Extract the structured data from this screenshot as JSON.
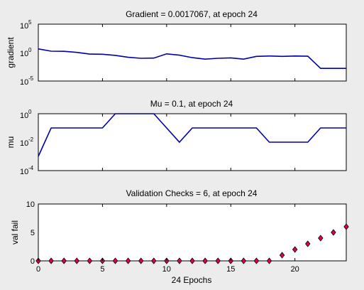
{
  "figure_background": "#ececec",
  "chart_data": [
    {
      "type": "line",
      "title": "Gradient = 0.0017067, at epoch 24",
      "xlabel": "",
      "ylabel": "gradient",
      "yscale": "log",
      "xlim": [
        0,
        24
      ],
      "ylim": [
        1e-05,
        100000
      ],
      "y_ticks": [
        {
          "base": "10",
          "exp": "5"
        },
        {
          "base": "10",
          "exp": "0"
        },
        {
          "base": "10",
          "exp": "-5"
        }
      ],
      "line_color": "#0000a8",
      "x": [
        0,
        1,
        2,
        3,
        4,
        5,
        6,
        7,
        8,
        9,
        10,
        11,
        12,
        13,
        14,
        15,
        16,
        17,
        18,
        19,
        20,
        21,
        22,
        23,
        24
      ],
      "values": [
        4.5,
        1.8,
        1.7,
        1.1,
        0.55,
        0.52,
        0.33,
        0.15,
        0.1,
        0.11,
        0.6,
        0.35,
        0.13,
        0.07,
        0.1,
        0.12,
        0.07,
        0.22,
        0.25,
        0.22,
        0.25,
        0.23,
        0.0017,
        0.0017,
        0.0017
      ]
    },
    {
      "type": "line",
      "title": "Mu = 0.1, at epoch 24",
      "xlabel": "",
      "ylabel": "mu",
      "yscale": "log",
      "xlim": [
        0,
        24
      ],
      "ylim": [
        0.0001,
        1
      ],
      "y_ticks": [
        {
          "base": "10",
          "exp": "0"
        },
        {
          "base": "10",
          "exp": "-2"
        },
        {
          "base": "10",
          "exp": "-4"
        }
      ],
      "line_color": "#0000a8",
      "x": [
        0,
        1,
        2,
        3,
        4,
        5,
        6,
        7,
        8,
        9,
        10,
        11,
        12,
        13,
        14,
        15,
        16,
        17,
        18,
        19,
        20,
        21,
        22,
        23,
        24
      ],
      "values": [
        0.001,
        0.1,
        0.1,
        0.1,
        0.1,
        0.1,
        1,
        1,
        1,
        1,
        0.1,
        0.01,
        0.1,
        0.1,
        0.1,
        0.1,
        0.1,
        0.1,
        0.01,
        0.01,
        0.01,
        0.01,
        0.1,
        0.1,
        0.1
      ]
    },
    {
      "type": "scatter",
      "title": "Validation Checks = 6, at epoch 24",
      "xlabel": "24 Epochs",
      "ylabel": "val fail",
      "xlim": [
        0,
        24
      ],
      "ylim": [
        0,
        10
      ],
      "x_ticks": [
        "0",
        "5",
        "10",
        "15",
        "20"
      ],
      "y_ticks": [
        "10",
        "5",
        "0"
      ],
      "marker": "diamond",
      "marker_color": "#e0004a",
      "marker_edge": "#000000",
      "x": [
        0,
        1,
        2,
        3,
        4,
        5,
        6,
        7,
        8,
        9,
        10,
        11,
        12,
        13,
        14,
        15,
        16,
        17,
        18,
        19,
        20,
        21,
        22,
        23,
        24
      ],
      "values": [
        0,
        0,
        0,
        0,
        0,
        0,
        0,
        0,
        0,
        0,
        0,
        0,
        0,
        0,
        0,
        0,
        0,
        0,
        0,
        1,
        2,
        3,
        4,
        5,
        6
      ]
    }
  ]
}
